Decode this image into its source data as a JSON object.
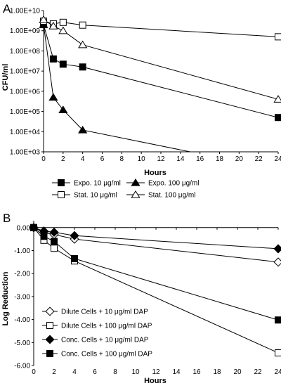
{
  "chart_data": [
    {
      "panel": "A",
      "type": "line",
      "xlabel": "Hours",
      "ylabel": "CFU/ml",
      "y_scale": "log",
      "xlim": [
        0,
        24
      ],
      "ylim": [
        1000,
        10000000000
      ],
      "x_ticks": [
        0,
        2,
        4,
        6,
        8,
        10,
        12,
        14,
        16,
        18,
        20,
        22,
        24
      ],
      "x_tick_labels": [
        "0",
        "2",
        "4",
        "6",
        "8",
        "10",
        "12",
        "14",
        "16",
        "18",
        "20",
        "22",
        "24"
      ],
      "y_ticks": [
        1000,
        10000,
        100000,
        1000000,
        10000000,
        100000000,
        1000000000,
        10000000000
      ],
      "y_tick_labels": [
        "1.00E+03",
        "1.00E+04",
        "1.00E+05",
        "1.00E+06",
        "1.00E+07",
        "1.00E+08",
        "1.00E+09",
        "1.00E+10"
      ],
      "legend_position": "below",
      "series": [
        {
          "name": "Expo. 10 μg/ml",
          "marker": "square",
          "fill": "filled",
          "x": [
            0,
            1,
            2,
            4,
            24
          ],
          "y": [
            2000000000,
            40000000,
            22000000,
            16000000,
            50000
          ]
        },
        {
          "name": "Expo. 100 μg/ml",
          "marker": "triangle",
          "fill": "filled",
          "x": [
            0,
            1,
            2,
            4,
            15
          ],
          "y": [
            2000000000,
            500000,
            120000,
            12000,
            1000
          ]
        },
        {
          "name": "Stat. 10 μg/ml",
          "marker": "square",
          "fill": "open",
          "x": [
            0,
            1,
            2,
            4,
            24
          ],
          "y": [
            3000000000,
            2200000000,
            2600000000,
            1900000000,
            500000000
          ]
        },
        {
          "name": "Stat. 100 μg/ml",
          "marker": "triangle",
          "fill": "open",
          "x": [
            0,
            1,
            2,
            4,
            24
          ],
          "y": [
            3500000000,
            1700000000,
            1000000000,
            200000000,
            400000
          ]
        }
      ]
    },
    {
      "panel": "B",
      "type": "line",
      "xlabel": "Hours",
      "ylabel": "Log Reduction",
      "xlim": [
        0,
        24
      ],
      "ylim": [
        -6,
        0.3
      ],
      "x_ticks": [
        0,
        2,
        4,
        6,
        8,
        10,
        12,
        14,
        16,
        18,
        20,
        22,
        24
      ],
      "x_tick_labels": [
        "0",
        "2",
        "4",
        "6",
        "8",
        "10",
        "12",
        "14",
        "16",
        "18",
        "20",
        "22",
        "24"
      ],
      "y_ticks": [
        0,
        -1,
        -2,
        -3,
        -4,
        -5,
        -6
      ],
      "y_tick_labels": [
        "0.00",
        "-1.00",
        "-2.00",
        "-3.00",
        "-4.00",
        "-5.00",
        "-6.00"
      ],
      "legend_position": "bottom-left",
      "series": [
        {
          "name": "Dilute Cells + 10 μg/ml DAP",
          "marker": "diamond",
          "fill": "open",
          "x": [
            0,
            1,
            2,
            4,
            24
          ],
          "y": [
            0,
            -0.22,
            -0.3,
            -0.5,
            -1.5
          ]
        },
        {
          "name": "Dilute Cells + 100 μg/ml DAP",
          "marker": "square",
          "fill": "open",
          "x": [
            0,
            1,
            2,
            4,
            24
          ],
          "y": [
            0,
            -0.55,
            -0.9,
            -1.45,
            -5.45
          ]
        },
        {
          "name": "Conc. Cells + 10 μg/ml DAP",
          "marker": "diamond",
          "fill": "filled",
          "x": [
            0,
            1,
            2,
            4,
            24
          ],
          "y": [
            0,
            -0.15,
            -0.2,
            -0.35,
            -0.92
          ]
        },
        {
          "name": "Conc. Cells + 100 μg/ml DAP",
          "marker": "square",
          "fill": "filled",
          "x": [
            0,
            1,
            2,
            4,
            24
          ],
          "y": [
            0,
            -0.38,
            -0.6,
            -1.35,
            -4.02
          ]
        }
      ]
    }
  ]
}
